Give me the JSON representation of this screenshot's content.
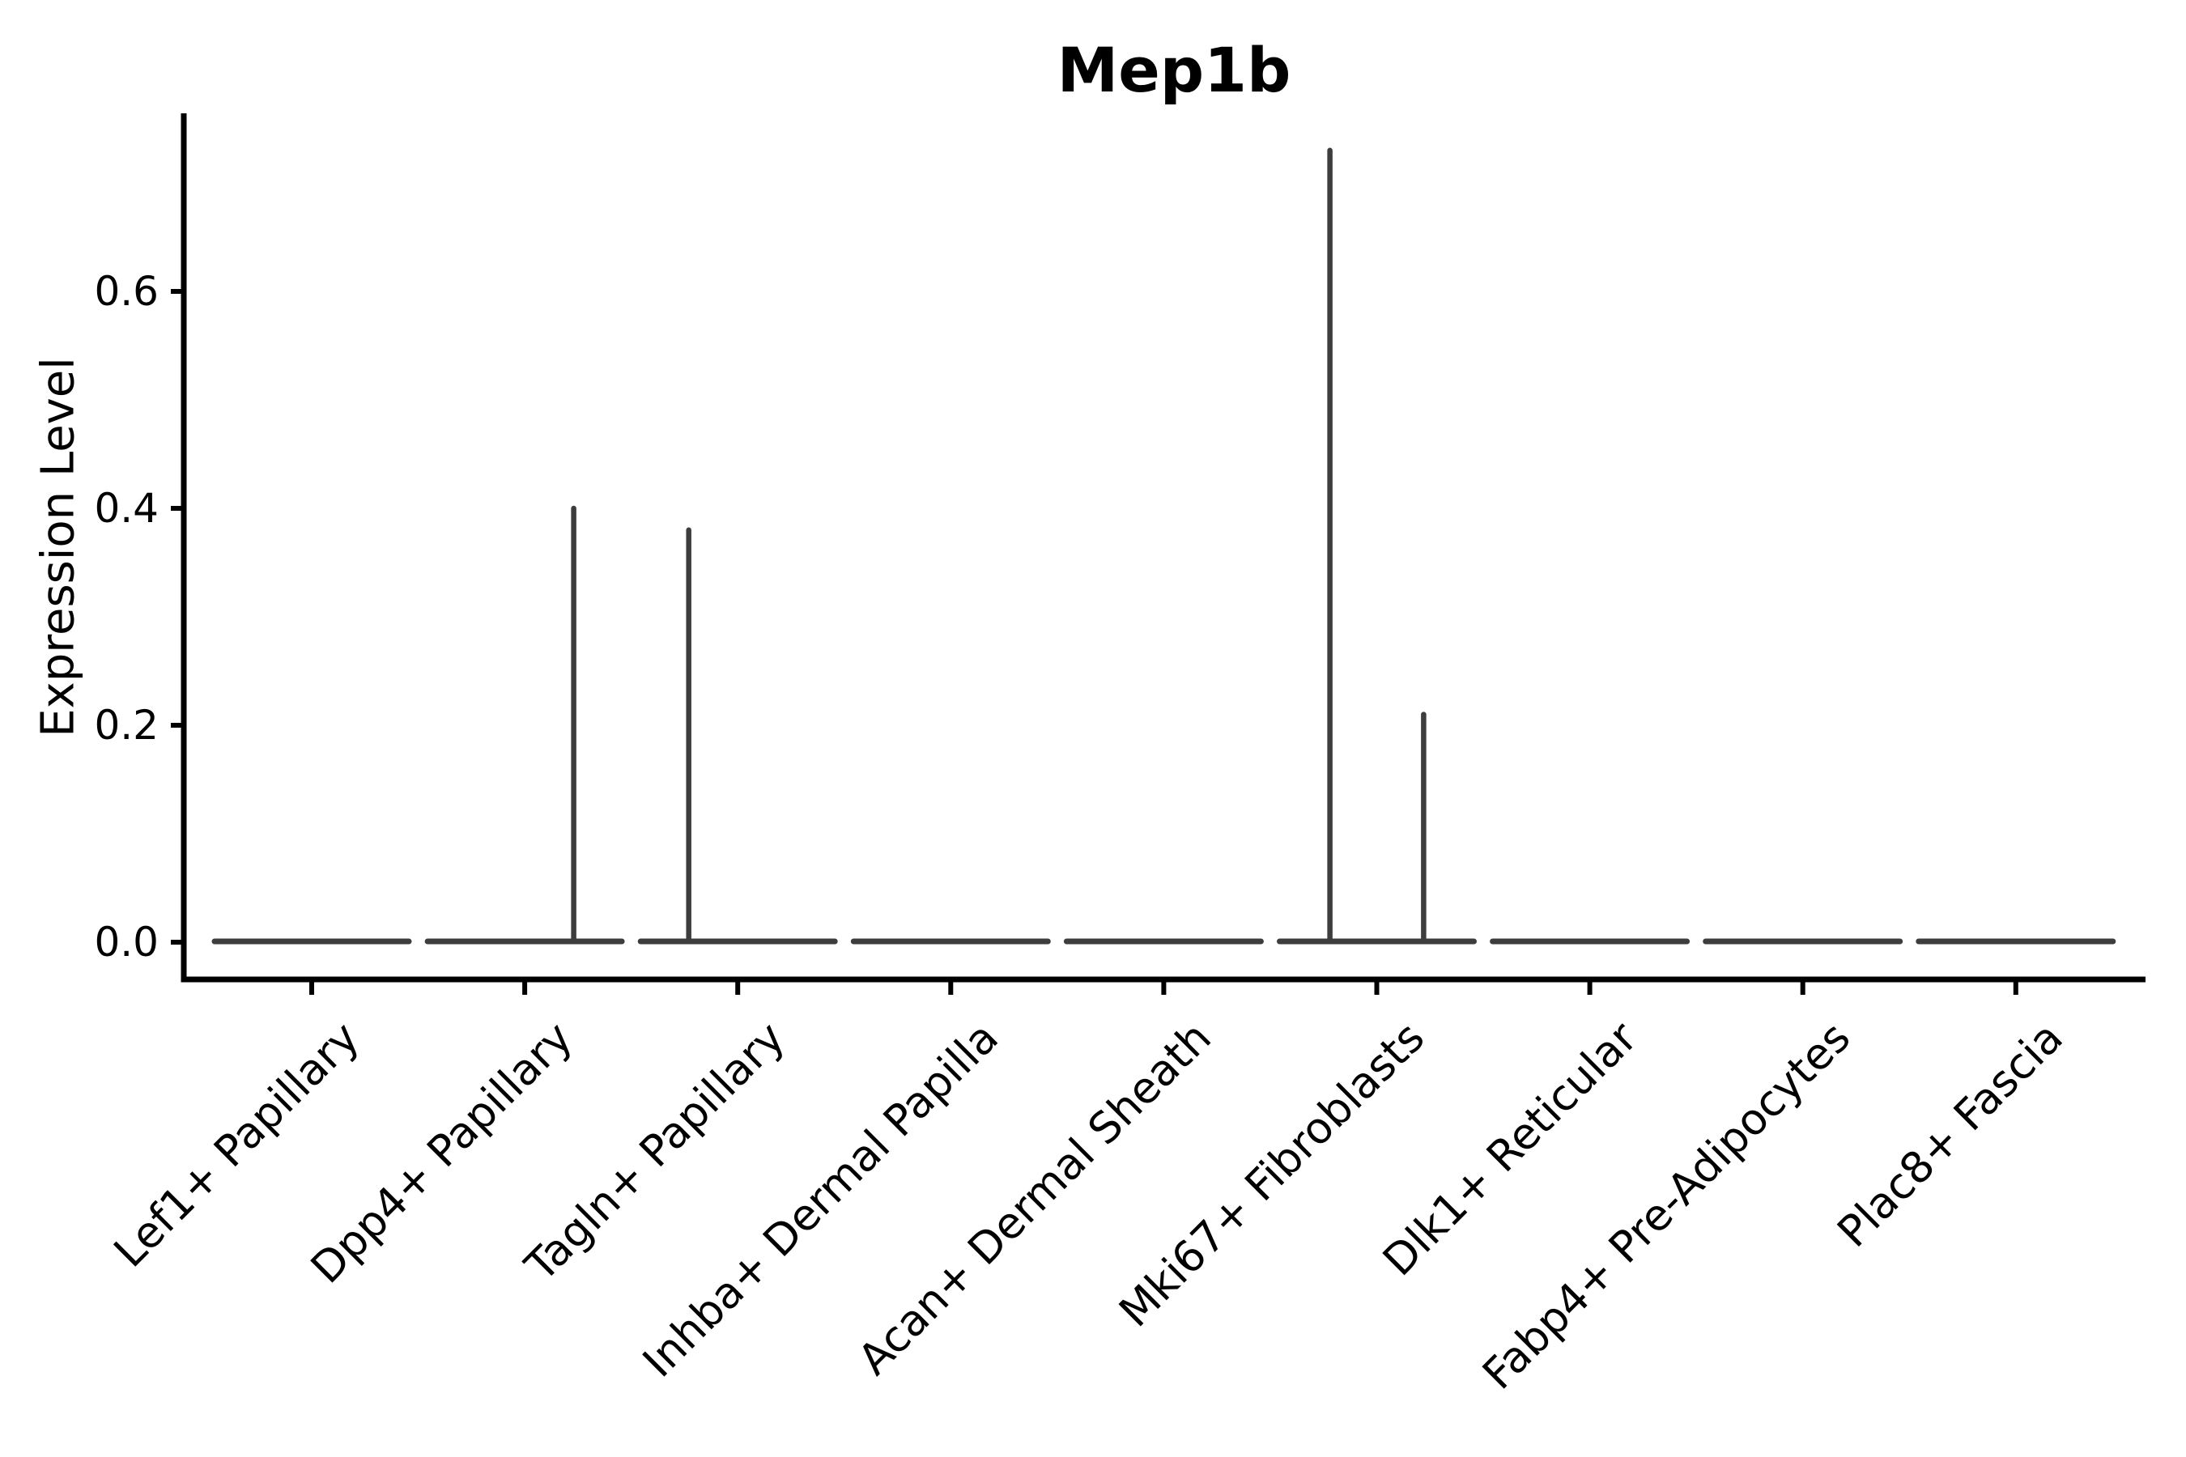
{
  "chart_data": {
    "type": "violin",
    "title": "Mep1b",
    "xlabel": "",
    "ylabel": "Expression Level",
    "categories": [
      "Lef1+ Papillary",
      "Dpp4+ Papillary",
      "Tagln+ Papillary",
      "Inhba+ Dermal Papilla",
      "Acan+ Dermal Sheath",
      "Mki67+ Fibroblasts",
      "Dlk1+ Reticular",
      "Fabp4+ Pre-Adipocytes",
      "Plac8+ Fascia"
    ],
    "y_tick_values": [
      0.0,
      0.2,
      0.4,
      0.6
    ],
    "y_tick_labels": [
      "0.0",
      "0.2",
      "0.4",
      "0.6"
    ],
    "ylim": [
      -0.034,
      0.764
    ],
    "x_tick_rotation_deg": 45,
    "grid": false,
    "legend": "none",
    "violins": [
      {
        "category": "Lef1+ Papillary",
        "baseline_value": 0.0,
        "spikes": []
      },
      {
        "category": "Dpp4+ Papillary",
        "baseline_value": 0.0,
        "spikes": [
          {
            "group_offset": 0.23,
            "max_value": 0.4
          }
        ]
      },
      {
        "category": "Tagln+ Papillary",
        "baseline_value": 0.0,
        "spikes": [
          {
            "group_offset": -0.23,
            "max_value": 0.38
          }
        ]
      },
      {
        "category": "Inhba+ Dermal Papilla",
        "baseline_value": 0.0,
        "spikes": []
      },
      {
        "category": "Acan+ Dermal Sheath",
        "baseline_value": 0.0,
        "spikes": []
      },
      {
        "category": "Mki67+ Fibroblasts",
        "baseline_value": 0.0,
        "spikes": [
          {
            "group_offset": -0.22,
            "max_value": 0.73
          },
          {
            "group_offset": 0.22,
            "max_value": 0.21
          }
        ]
      },
      {
        "category": "Dlk1+ Reticular",
        "baseline_value": 0.0,
        "spikes": []
      },
      {
        "category": "Fabp4+ Pre-Adipocytes",
        "baseline_value": 0.0,
        "spikes": []
      },
      {
        "category": "Plac8+ Fascia",
        "baseline_value": 0.0,
        "spikes": []
      }
    ],
    "colors": {
      "violin_stroke": "#3d3d3d",
      "axis": "#000000",
      "text": "#000000",
      "background": "#ffffff"
    }
  }
}
